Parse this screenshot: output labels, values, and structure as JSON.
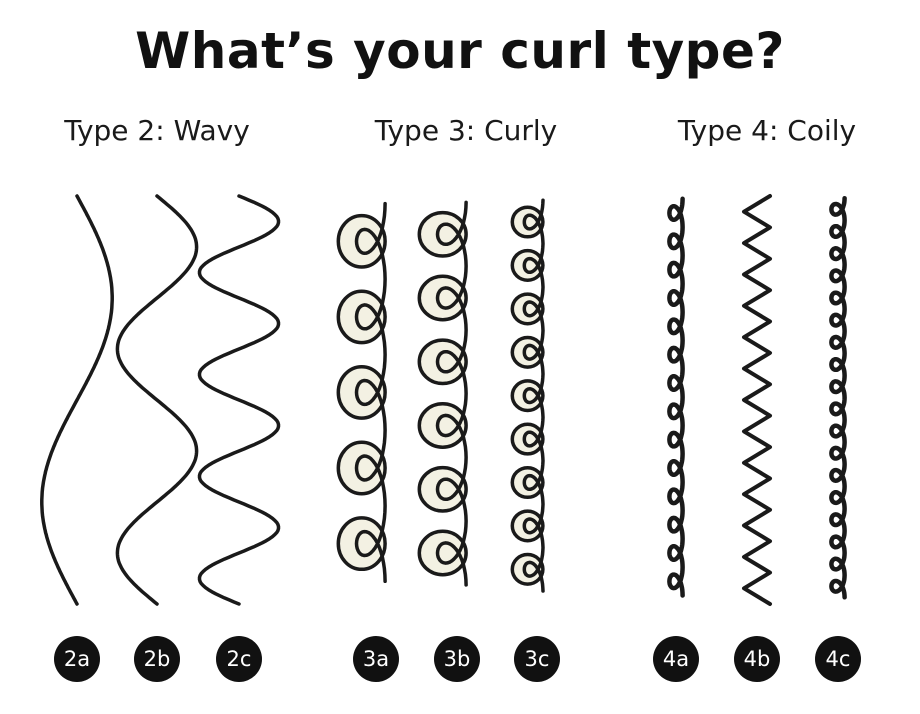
{
  "title": "What’s your curl type?",
  "colors": {
    "ink": "#1a1a1a",
    "loop_fill": "#f3f1e3",
    "badge_bg": "#111111",
    "badge_text": "#ffffff"
  },
  "groups": [
    {
      "heading": "Type 2: Wavy"
    },
    {
      "heading": "Type 3: Curly"
    },
    {
      "heading": "Type 4: Coily"
    }
  ],
  "patterns": [
    {
      "label": "2a",
      "style": "wave",
      "half_waves": 2,
      "amplitude": 0.4
    },
    {
      "label": "2b",
      "style": "wave",
      "half_waves": 4,
      "amplitude": 0.45
    },
    {
      "label": "2c",
      "style": "wave",
      "half_waves": 8,
      "amplitude": 0.45
    },
    {
      "label": "3a",
      "style": "loop",
      "loops": 5
    },
    {
      "label": "3b",
      "style": "loop",
      "loops": 6
    },
    {
      "label": "3c",
      "style": "loop",
      "loops": 9
    },
    {
      "label": "4a",
      "style": "coil",
      "coils": 14
    },
    {
      "label": "4b",
      "style": "zigzag",
      "zigs": 26
    },
    {
      "label": "4c",
      "style": "coil",
      "coils": 18
    }
  ]
}
